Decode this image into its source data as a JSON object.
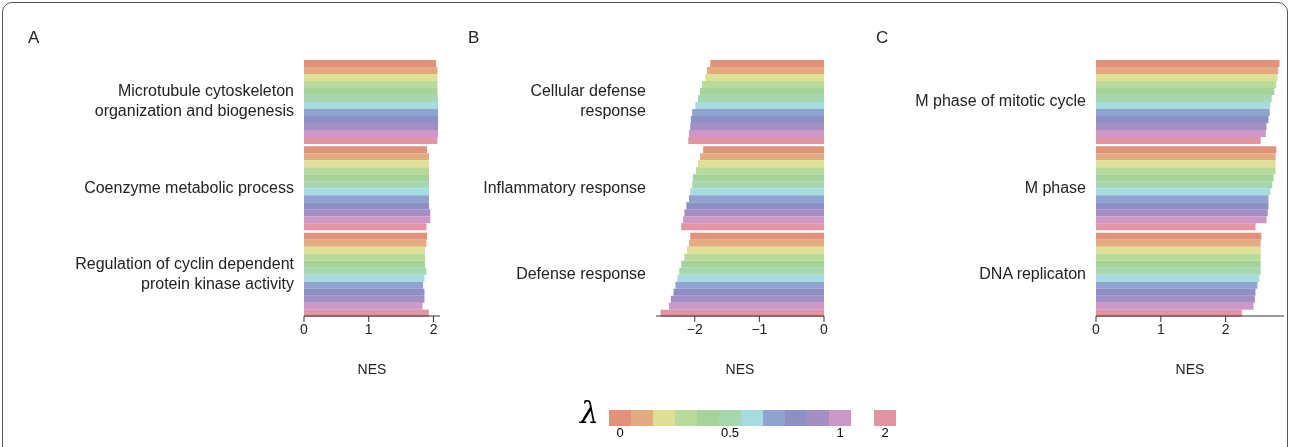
{
  "chart_data": [
    {
      "type": "bar",
      "orientation": "horizontal",
      "title": "A",
      "xlabel": "NES",
      "categories": [
        "Microtubule cytoskeleton organization and biogenesis",
        "Coenzyme metabolic process",
        "Regulation of cyclin dependent protein kinase activity"
      ],
      "xlim": [
        0,
        2.1
      ],
      "xticks": [
        0,
        1,
        2
      ],
      "series": [
        {
          "color": "#e2917a",
          "values": [
            2.04,
            1.9,
            1.9
          ]
        },
        {
          "color": "#e4ab80",
          "values": [
            2.06,
            1.93,
            1.89
          ]
        },
        {
          "color": "#e0df96",
          "values": [
            2.06,
            1.93,
            1.87
          ]
        },
        {
          "color": "#b8da9a",
          "values": [
            2.06,
            1.93,
            1.87
          ]
        },
        {
          "color": "#a6d39a",
          "values": [
            2.06,
            1.93,
            1.87
          ]
        },
        {
          "color": "#a6d7ae",
          "values": [
            2.07,
            1.93,
            1.89
          ]
        },
        {
          "color": "#a6dbe0",
          "values": [
            2.07,
            1.93,
            1.86
          ]
        },
        {
          "color": "#8fa3d0",
          "values": [
            2.07,
            1.93,
            1.84
          ]
        },
        {
          "color": "#8e8fc4",
          "values": [
            2.07,
            1.93,
            1.86
          ]
        },
        {
          "color": "#a48fc4",
          "values": [
            2.07,
            1.95,
            1.86
          ]
        },
        {
          "color": "#cc98c8",
          "values": [
            2.07,
            1.95,
            1.83
          ]
        },
        {
          "color": "#e293a4",
          "values": [
            2.06,
            1.89,
            1.93
          ]
        }
      ]
    },
    {
      "type": "bar",
      "orientation": "horizontal",
      "title": "B",
      "xlabel": "NES",
      "legend": "bottom",
      "legend_title": "λ",
      "categories": [
        "Cellular defense response",
        "Inflammatory response",
        "Defense response"
      ],
      "xlim": [
        -2.6,
        0
      ],
      "xticks": [
        {
          "value": -2,
          "label": "−2"
        },
        {
          "value": -1,
          "label": "−1"
        },
        0
      ],
      "series": [
        {
          "name": "0",
          "color": "#e2917a",
          "values": [
            -1.76,
            -1.87,
            -2.07
          ]
        },
        {
          "color": "#e4ab80",
          "values": [
            -1.81,
            -1.92,
            -2.09
          ]
        },
        {
          "color": "#e0df96",
          "values": [
            -1.84,
            -1.95,
            -2.12
          ]
        },
        {
          "color": "#b8da9a",
          "values": [
            -1.89,
            -1.98,
            -2.16
          ]
        },
        {
          "color": "#a6d39a",
          "values": [
            -1.92,
            -2.03,
            -2.21
          ]
        },
        {
          "name": "0.5",
          "color": "#a6d7ae",
          "values": [
            -1.95,
            -2.04,
            -2.24
          ]
        },
        {
          "color": "#a6dbe0",
          "values": [
            -1.99,
            -2.07,
            -2.27
          ]
        },
        {
          "color": "#8fa3d0",
          "values": [
            -2.04,
            -2.09,
            -2.3
          ]
        },
        {
          "color": "#8e8fc4",
          "values": [
            -2.06,
            -2.13,
            -2.33
          ]
        },
        {
          "color": "#a48fc4",
          "values": [
            -2.07,
            -2.16,
            -2.37
          ]
        },
        {
          "name": "1",
          "color": "#cc98c8",
          "values": [
            -2.09,
            -2.18,
            -2.4
          ]
        },
        {
          "name": "2",
          "color": "#e293a4",
          "values": [
            -2.1,
            -2.21,
            -2.53
          ]
        }
      ]
    },
    {
      "type": "bar",
      "orientation": "horizontal",
      "title": "C",
      "xlabel": "NES",
      "categories": [
        "M phase of mitotic cycle",
        "M phase",
        "DNA replicaton"
      ],
      "xlim": [
        0,
        2.9
      ],
      "xticks": [
        0,
        1,
        2
      ],
      "series": [
        {
          "color": "#e2917a",
          "values": [
            2.83,
            2.78,
            2.55
          ]
        },
        {
          "color": "#e4ab80",
          "values": [
            2.81,
            2.77,
            2.54
          ]
        },
        {
          "color": "#e0df96",
          "values": [
            2.8,
            2.77,
            2.54
          ]
        },
        {
          "color": "#b8da9a",
          "values": [
            2.78,
            2.77,
            2.54
          ]
        },
        {
          "color": "#a6d39a",
          "values": [
            2.75,
            2.74,
            2.54
          ]
        },
        {
          "color": "#a6d7ae",
          "values": [
            2.71,
            2.72,
            2.54
          ]
        },
        {
          "color": "#a6dbe0",
          "values": [
            2.69,
            2.69,
            2.52
          ]
        },
        {
          "color": "#8fa3d0",
          "values": [
            2.68,
            2.66,
            2.49
          ]
        },
        {
          "color": "#8e8fc4",
          "values": [
            2.66,
            2.66,
            2.46
          ]
        },
        {
          "color": "#a48fc4",
          "values": [
            2.63,
            2.65,
            2.45
          ]
        },
        {
          "color": "#cc98c8",
          "values": [
            2.62,
            2.63,
            2.43
          ]
        },
        {
          "color": "#e293a4",
          "values": [
            2.54,
            2.46,
            2.25
          ]
        }
      ]
    }
  ]
}
